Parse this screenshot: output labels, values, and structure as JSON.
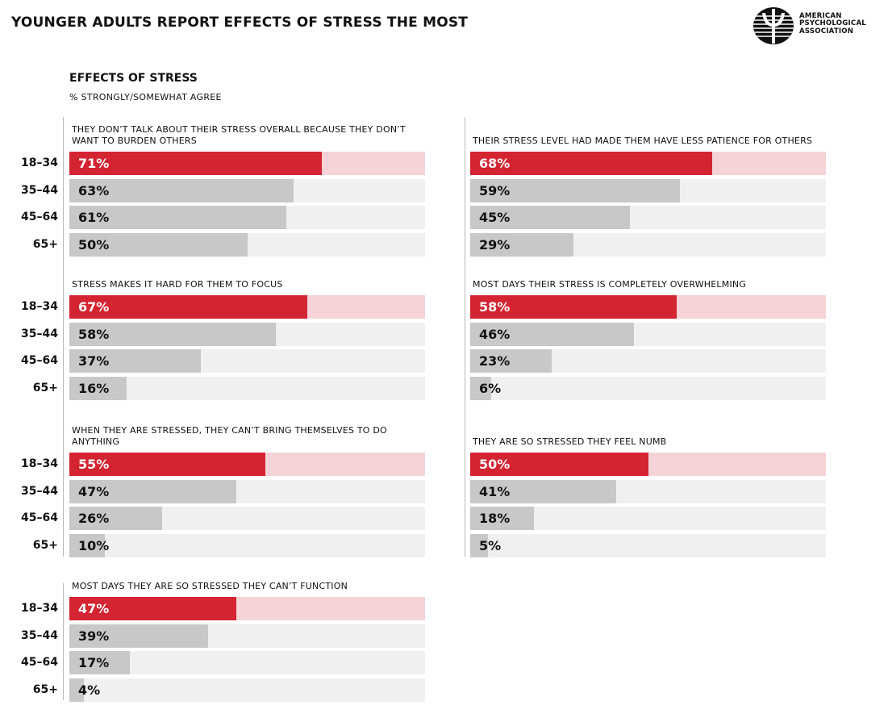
{
  "header": {
    "title": "YOUNGER ADULTS REPORT EFFECTS OF STRESS THE MOST"
  },
  "logo": {
    "lines": [
      "AMERICAN",
      "PSYCHOLOGICAL",
      "ASSOCIATION"
    ],
    "icon": "apa-psi-logo-icon"
  },
  "colors": {
    "highlight": "#d42432",
    "highlight_track": "#f5d3d6",
    "bar": "#c8c8c9",
    "track": "#f0f0f1"
  },
  "chart_data": {
    "type": "bar",
    "title": "EFFECTS OF STRESS",
    "unit_label": "% STRONGLY/SOMEWHAT AGREE",
    "categories": [
      "18–34",
      "35–44",
      "45–64",
      "65+"
    ],
    "xlim": [
      0,
      100
    ],
    "panels": [
      {
        "title": "THEY DON’T TALK ABOUT THEIR STRESS OVERALL BECAUSE THEY DON’T WANT TO BURDEN OTHERS",
        "values": [
          71,
          63,
          61,
          50
        ],
        "labels": [
          "71%",
          "63%",
          "61%",
          "50%"
        ]
      },
      {
        "title": "THEIR STRESS LEVEL HAD MADE THEM HAVE LESS PATIENCE FOR OTHERS",
        "values": [
          68,
          59,
          45,
          29
        ],
        "labels": [
          "68%",
          "59%",
          "45%",
          "29%"
        ]
      },
      {
        "title": "STRESS MAKES IT HARD FOR THEM TO FOCUS",
        "values": [
          67,
          58,
          37,
          16
        ],
        "labels": [
          "67%",
          "58%",
          "37%",
          "16%"
        ]
      },
      {
        "title": "MOST DAYS THEIR STRESS IS COMPLETELY OVERWHELMING",
        "values": [
          58,
          46,
          23,
          6
        ],
        "labels": [
          "58%",
          "46%",
          "23%",
          "6%"
        ]
      },
      {
        "title": "WHEN THEY ARE STRESSED, THEY CAN’T BRING THEMSELVES TO DO ANYTHING",
        "values": [
          55,
          47,
          26,
          10
        ],
        "labels": [
          "55%",
          "47%",
          "26%",
          "10%"
        ]
      },
      {
        "title": "THEY ARE SO STRESSED THEY FEEL NUMB",
        "values": [
          50,
          41,
          18,
          5
        ],
        "labels": [
          "50%",
          "41%",
          "18%",
          "5%"
        ]
      },
      {
        "title": "MOST DAYS THEY ARE SO STRESSED THEY CAN’T FUNCTION",
        "values": [
          47,
          39,
          17,
          4
        ],
        "labels": [
          "47%",
          "39%",
          "17%",
          "4%"
        ]
      }
    ]
  }
}
